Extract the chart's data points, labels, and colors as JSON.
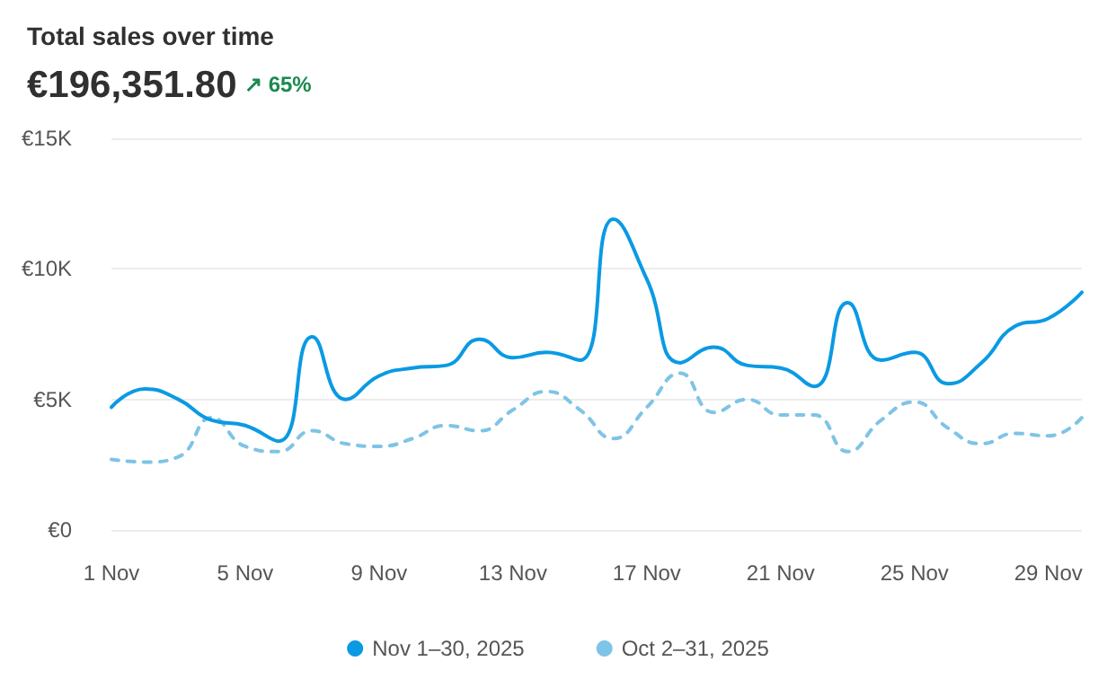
{
  "chart_data": {
    "type": "line",
    "title": "Total sales over time",
    "subtitle": "€196,351.80",
    "annotations": [
      "↗ 65%"
    ],
    "categories": [
      "1 Nov",
      null,
      null,
      null,
      "5 Nov",
      null,
      null,
      null,
      "9 Nov",
      null,
      null,
      null,
      "13 Nov",
      null,
      null,
      null,
      "17 Nov",
      null,
      null,
      null,
      "21 Nov",
      null,
      null,
      null,
      "25 Nov",
      null,
      null,
      null,
      "29 Nov",
      null
    ],
    "series": [
      {
        "name": "Nov 1–30, 2025",
        "color": "#0a9ae3",
        "line_style": "solid",
        "values": [
          4.7,
          5.4,
          5.0,
          4.2,
          4.0,
          3.4,
          7.4,
          5.0,
          5.9,
          6.2,
          6.3,
          7.3,
          6.6,
          6.8,
          6.5,
          11.9,
          9.6,
          6.4,
          7.0,
          6.3,
          6.2,
          5.5,
          8.7,
          6.5,
          6.8,
          5.6,
          6.4,
          7.8,
          8.1,
          9.1
        ]
      },
      {
        "name": "Oct 2–31, 2025",
        "color": "#7ec4e6",
        "line_style": "dashed",
        "values": [
          2.7,
          2.6,
          2.8,
          4.3,
          3.2,
          3.0,
          3.8,
          3.3,
          3.2,
          3.5,
          4.0,
          3.8,
          4.6,
          5.3,
          4.6,
          3.5,
          4.7,
          6.0,
          4.5,
          5.0,
          4.4,
          4.4,
          3.0,
          4.2,
          4.9,
          3.9,
          3.3,
          3.7,
          3.6,
          4.3
        ]
      }
    ],
    "ylim": [
      0,
      15
    ],
    "yticks": [
      {
        "value": 0,
        "label": "€0"
      },
      {
        "value": 5,
        "label": "€5K"
      },
      {
        "value": 10,
        "label": "€10K"
      },
      {
        "value": 15,
        "label": "€15K"
      }
    ],
    "grid": "y",
    "legend": "bottom",
    "marker": "none"
  }
}
